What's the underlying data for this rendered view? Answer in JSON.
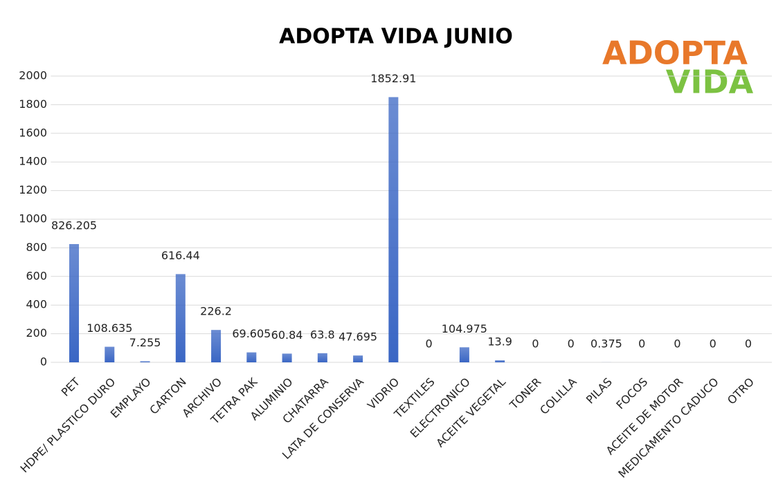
{
  "chart_data": {
    "type": "bar",
    "title": "ADOPTA VIDA JUNIO",
    "logo": {
      "line1": "ADOPTA",
      "line2": "VIDA",
      "color1": "#e8782a",
      "color2": "#7cc242"
    },
    "categories": [
      "PET",
      "HDPE/ PLASTICO DURO",
      "EMPLAYO",
      "CARTON",
      "ARCHIVO",
      "TETRA PAK",
      "ALUMINIO",
      "CHATARRA",
      "LATA DE CONSERVA",
      "VIDRIO",
      "TEXTILES",
      "ELECTRONICO",
      "ACEITE VEGETAL",
      "TONER",
      "COLILLA",
      "PILAS",
      "FOCOS",
      "ACEITE DE MOTOR",
      "MEDICAMENTO CADUCO",
      "OTRO"
    ],
    "values": [
      826.205,
      108.635,
      7.255,
      616.44,
      226.2,
      69.605,
      60.84,
      63.8,
      47.695,
      1852.91,
      0,
      104.975,
      13.9,
      0,
      0,
      0.375,
      0,
      0,
      0,
      0
    ],
    "color": "#3a66c4",
    "ylim": [
      0,
      2000
    ],
    "yticks": [
      0,
      200,
      400,
      600,
      800,
      1000,
      1200,
      1400,
      1600,
      1800,
      2000
    ],
    "grid": true
  }
}
